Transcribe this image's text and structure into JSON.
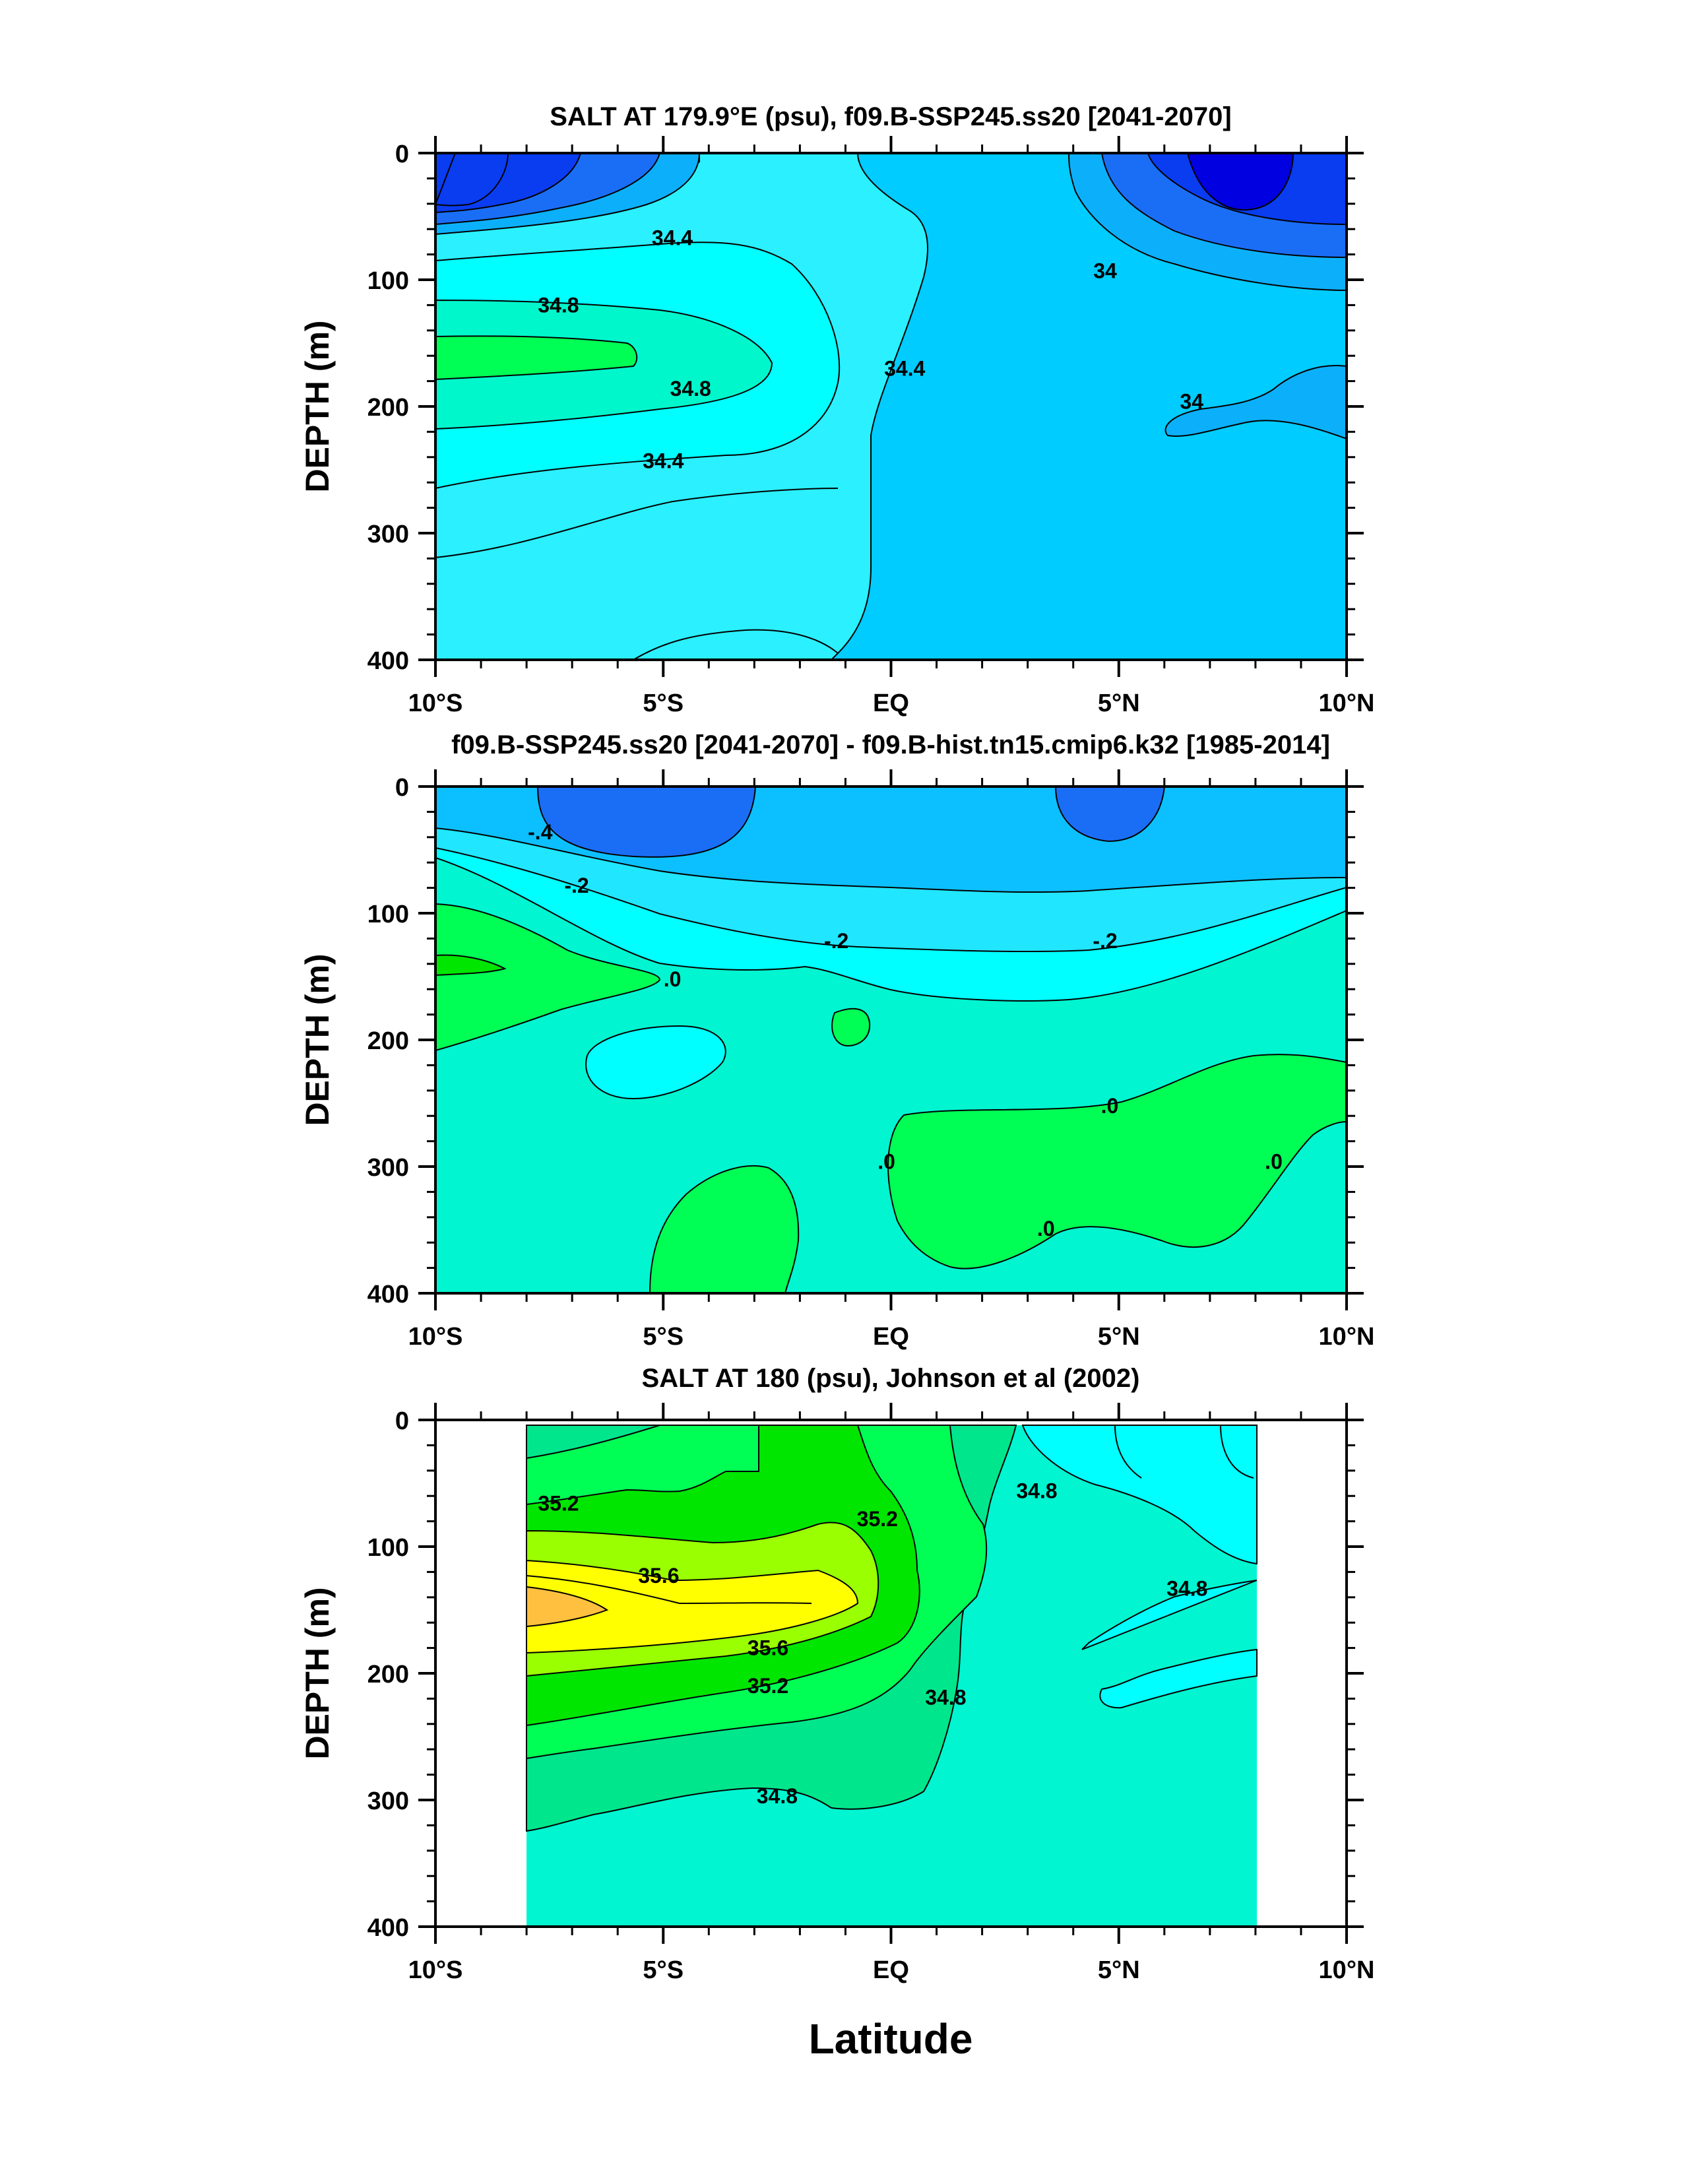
{
  "chart_data": [
    {
      "type": "contour",
      "title": "SALT AT 179.9°E (psu), f09.B-SSP245.ss20 [2041-2070]",
      "xlabel": "",
      "ylabel": "DEPTH (m)",
      "xlim": [
        -10,
        10
      ],
      "ylim": [
        400,
        0
      ],
      "x_ticks": [
        -10,
        -5,
        0,
        5,
        10
      ],
      "x_tick_labels": [
        "10°S",
        "5°S",
        "EQ",
        "5°N",
        "10°N"
      ],
      "y_ticks": [
        0,
        100,
        200,
        300,
        400
      ],
      "y_tick_labels": [
        "0",
        "100",
        "200",
        "300",
        "400"
      ],
      "levels": [
        {
          "range": "<33.6",
          "color": "#0a3cf0"
        },
        {
          "range": "33.6-33.8",
          "color": "#1a6ef6"
        },
        {
          "range": "33.8-34.0",
          "color": "#0cb0fa"
        },
        {
          "range": "34.0-34.2",
          "color": "#00ccff"
        },
        {
          "range": "34.2-34.4",
          "color": "#2af0ff"
        },
        {
          "range": "34.4-34.6",
          "color": "#00ffff"
        },
        {
          "range": "34.6-34.8",
          "color": "#00f7cc"
        },
        {
          "range": ">34.8",
          "color": "#00ff55"
        }
      ],
      "contour_labels": [
        {
          "text": "34.4",
          "x": -4.8,
          "y": 67
        },
        {
          "text": "34.8",
          "x": -7.3,
          "y": 120
        },
        {
          "text": "34",
          "x": 4.7,
          "y": 93
        },
        {
          "text": "34.4",
          "x": 0.3,
          "y": 170
        },
        {
          "text": "34.8",
          "x": -4.4,
          "y": 186
        },
        {
          "text": "34",
          "x": 6.6,
          "y": 196
        },
        {
          "text": "34.4",
          "x": -5.0,
          "y": 243
        }
      ]
    },
    {
      "type": "contour",
      "title": "f09.B-SSP245.ss20 [2041-2070] - f09.B-hist.tn15.cmip6.k32 [1985-2014]",
      "xlabel": "",
      "ylabel": "DEPTH (m)",
      "xlim": [
        -10,
        10
      ],
      "ylim": [
        400,
        0
      ],
      "x_ticks": [
        -10,
        -5,
        0,
        5,
        10
      ],
      "x_tick_labels": [
        "10°S",
        "5°S",
        "EQ",
        "5°N",
        "10°N"
      ],
      "y_ticks": [
        0,
        100,
        200,
        300,
        400
      ],
      "y_tick_labels": [
        "0",
        "100",
        "200",
        "300",
        "400"
      ],
      "levels": [
        {
          "range": "<-0.4",
          "color": "#1a6ef6"
        },
        {
          "range": "-0.4 to -0.2",
          "color": "#0cc0ff"
        },
        {
          "range": "-0.2 to -0.1",
          "color": "#20e6ff"
        },
        {
          "range": "-0.1 to 0",
          "color": "#00ffff"
        },
        {
          "range": "0 to 0.1",
          "color": "#00f5d0"
        },
        {
          "range": ">0.1",
          "color": "#00ff55"
        }
      ],
      "contour_labels": [
        {
          "text": "-.4",
          "x": -7.7,
          "y": 36
        },
        {
          "text": "-.2",
          "x": -6.9,
          "y": 78
        },
        {
          "text": "-.2",
          "x": -1.2,
          "y": 122
        },
        {
          "text": "-.2",
          "x": 4.7,
          "y": 122
        },
        {
          "text": ".0",
          "x": -4.8,
          "y": 152
        },
        {
          "text": ".0",
          "x": 4.8,
          "y": 252
        },
        {
          "text": ".0",
          "x": -0.1,
          "y": 296
        },
        {
          "text": ".0",
          "x": 8.4,
          "y": 296
        },
        {
          "text": ".0",
          "x": 3.4,
          "y": 349
        }
      ]
    },
    {
      "type": "contour",
      "title": "SALT AT 180 (psu), Johnson et al (2002)",
      "xlabel": "Latitude",
      "ylabel": "DEPTH (m)",
      "xlim": [
        -10,
        10
      ],
      "ylim": [
        400,
        0
      ],
      "data_xlim": [
        -8,
        8
      ],
      "x_ticks": [
        -10,
        -5,
        0,
        5,
        10
      ],
      "x_tick_labels": [
        "10°S",
        "5°S",
        "EQ",
        "5°N",
        "10°N"
      ],
      "y_ticks": [
        0,
        100,
        200,
        300,
        400
      ],
      "y_tick_labels": [
        "0",
        "100",
        "200",
        "300",
        "400"
      ],
      "levels": [
        {
          "range": "34.4-34.6",
          "color": "#00ffff"
        },
        {
          "range": "34.6-34.8",
          "color": "#00f5d0"
        },
        {
          "range": "34.8-35.0",
          "color": "#00e68c"
        },
        {
          "range": "35.0-35.2",
          "color": "#00ff55"
        },
        {
          "range": "35.2-35.4",
          "color": "#00e600"
        },
        {
          "range": "35.4-35.6",
          "color": "#9aff00"
        },
        {
          "range": "35.6-35.8",
          "color": "#ffff00"
        },
        {
          "range": ">35.8",
          "color": "#ffc040"
        }
      ],
      "contour_labels": [
        {
          "text": "35.2",
          "x": -7.3,
          "y": 66
        },
        {
          "text": "35.2",
          "x": -0.3,
          "y": 78
        },
        {
          "text": "34.8",
          "x": 3.2,
          "y": 56
        },
        {
          "text": "35.6",
          "x": -5.1,
          "y": 123
        },
        {
          "text": "34.8",
          "x": 6.5,
          "y": 133
        },
        {
          "text": "35.6",
          "x": -2.7,
          "y": 180
        },
        {
          "text": "35.2",
          "x": -2.7,
          "y": 210
        },
        {
          "text": "34.8",
          "x": 1.2,
          "y": 219
        },
        {
          "text": "34.8",
          "x": -2.5,
          "y": 297
        }
      ]
    }
  ]
}
